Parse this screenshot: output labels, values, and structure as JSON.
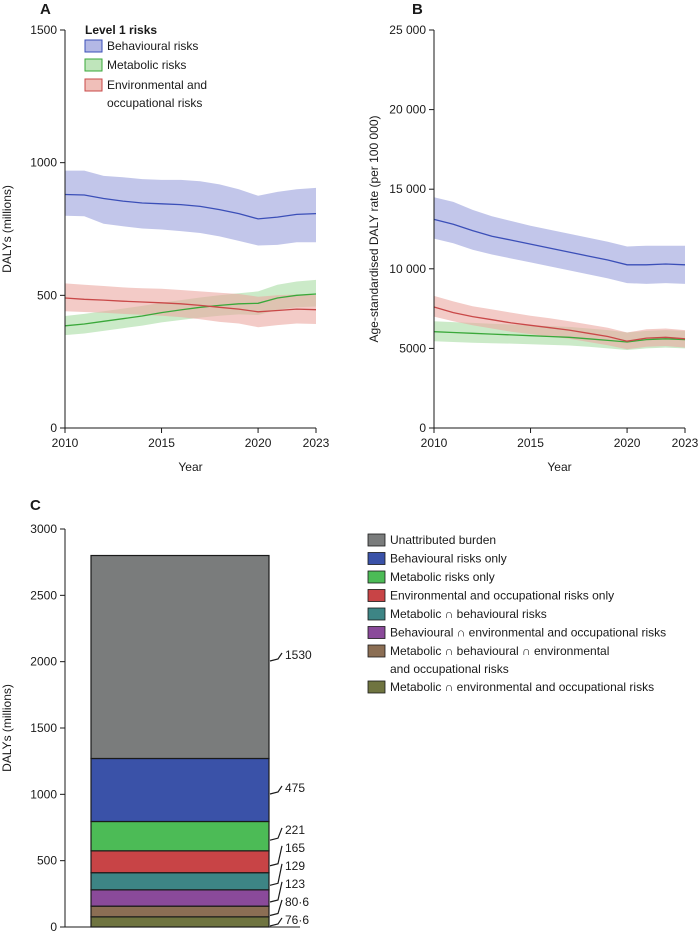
{
  "colors": {
    "behavioural_line": "#3b4fb8",
    "behavioural_band": "#9aa0dc",
    "metabolic_line": "#3aa83a",
    "metabolic_band": "#a9dca4",
    "environmental_line": "#c94848",
    "environmental_band": "#eba9a2",
    "overlap_line": "#7d6b40",
    "axis": "#1a1a1a",
    "bar_outline": "#1a1a1a"
  },
  "chart_data": [
    {
      "panel": "A",
      "type": "area",
      "title": "",
      "xlabel": "Year",
      "ylabel": "DALYs (millions)",
      "xlim": [
        2010,
        2023
      ],
      "ylim": [
        0,
        1500
      ],
      "xticks": [
        2010,
        2015,
        2020,
        2023
      ],
      "yticks": [
        0,
        500,
        1000,
        1500
      ],
      "grid": false,
      "legend_title": "Level 1 risks",
      "legend_position": "top-left",
      "x": [
        2010,
        2011,
        2012,
        2013,
        2014,
        2015,
        2016,
        2017,
        2018,
        2019,
        2020,
        2021,
        2022,
        2023
      ],
      "series": [
        {
          "name": "Behavioural risks",
          "values": [
            880,
            878,
            865,
            855,
            848,
            845,
            842,
            835,
            823,
            808,
            788,
            795,
            805,
            808
          ],
          "lower": [
            800,
            798,
            770,
            760,
            752,
            748,
            742,
            735,
            722,
            705,
            688,
            690,
            700,
            700
          ],
          "upper": [
            970,
            970,
            950,
            945,
            938,
            935,
            935,
            930,
            918,
            900,
            875,
            890,
            900,
            905
          ],
          "line_color": "#3b4fb8",
          "band_color": "#9aa0dc"
        },
        {
          "name": "Metabolic risks",
          "values": [
            385,
            392,
            402,
            412,
            422,
            435,
            445,
            455,
            462,
            468,
            470,
            490,
            500,
            505
          ],
          "lower": [
            350,
            356,
            366,
            376,
            386,
            398,
            407,
            416,
            423,
            428,
            426,
            445,
            455,
            458
          ],
          "upper": [
            422,
            430,
            440,
            450,
            460,
            472,
            482,
            492,
            500,
            508,
            515,
            540,
            552,
            558
          ],
          "line_color": "#3aa83a",
          "band_color": "#a9dca4"
        },
        {
          "name": "Environmental and occupational risks",
          "values": [
            490,
            485,
            482,
            478,
            475,
            472,
            468,
            462,
            455,
            448,
            438,
            443,
            448,
            446
          ],
          "lower": [
            440,
            437,
            434,
            430,
            427,
            423,
            418,
            410,
            400,
            394,
            380,
            388,
            394,
            392
          ],
          "upper": [
            545,
            540,
            535,
            530,
            527,
            525,
            520,
            515,
            510,
            505,
            495,
            500,
            503,
            501
          ],
          "line_color": "#c94848",
          "band_color": "#eba9a2"
        }
      ]
    },
    {
      "panel": "B",
      "type": "area",
      "title": "",
      "xlabel": "Year",
      "ylabel": "Age-standardised DALY rate (per 100 000)",
      "xlim": [
        2010,
        2023
      ],
      "ylim": [
        0,
        25000
      ],
      "xticks": [
        2010,
        2015,
        2020,
        2023
      ],
      "yticks": [
        0,
        5000,
        10000,
        15000,
        20000,
        25000
      ],
      "ytick_labels": [
        "0",
        "5000",
        "10 000",
        "15 000",
        "20 000",
        "25 000"
      ],
      "grid": false,
      "x": [
        2010,
        2011,
        2012,
        2013,
        2014,
        2015,
        2016,
        2017,
        2018,
        2019,
        2020,
        2021,
        2022,
        2023
      ],
      "series": [
        {
          "name": "Behavioural risks",
          "values": [
            13100,
            12800,
            12400,
            12050,
            11800,
            11550,
            11300,
            11050,
            10800,
            10550,
            10250,
            10250,
            10300,
            10250
          ],
          "lower": [
            11900,
            11600,
            11200,
            10900,
            10650,
            10400,
            10150,
            9900,
            9650,
            9400,
            9100,
            9050,
            9100,
            9050
          ],
          "upper": [
            14500,
            14200,
            13700,
            13300,
            13000,
            12700,
            12450,
            12200,
            11950,
            11700,
            11400,
            11450,
            11450,
            11450
          ],
          "line_color": "#3b4fb8",
          "band_color": "#9aa0dc"
        },
        {
          "name": "Metabolic risks",
          "values": [
            6050,
            6000,
            5950,
            5900,
            5850,
            5800,
            5750,
            5700,
            5600,
            5500,
            5400,
            5550,
            5600,
            5550
          ],
          "lower": [
            5450,
            5400,
            5350,
            5320,
            5300,
            5260,
            5220,
            5180,
            5100,
            5000,
            4900,
            5000,
            5050,
            5000
          ],
          "upper": [
            6700,
            6650,
            6600,
            6550,
            6500,
            6450,
            6400,
            6350,
            6250,
            6150,
            6000,
            6100,
            6150,
            6100
          ],
          "line_color": "#3aa83a",
          "band_color": "#a9dca4"
        },
        {
          "name": "Environmental and occupational risks",
          "values": [
            7600,
            7250,
            7000,
            6800,
            6600,
            6450,
            6300,
            6150,
            5950,
            5750,
            5450,
            5650,
            5700,
            5600
          ],
          "lower": [
            7000,
            6700,
            6450,
            6250,
            6050,
            5900,
            5750,
            5600,
            5400,
            5200,
            4950,
            5100,
            5150,
            5050
          ],
          "upper": [
            8300,
            7950,
            7650,
            7450,
            7250,
            7050,
            6900,
            6700,
            6500,
            6300,
            6000,
            6200,
            6250,
            6150
          ],
          "line_color": "#c94848",
          "band_color": "#eba9a2"
        }
      ]
    },
    {
      "panel": "C",
      "type": "bar",
      "stacked": true,
      "title": "",
      "xlabel": "",
      "ylabel": "DALYs (millions)",
      "ylim": [
        0,
        3000
      ],
      "yticks": [
        0,
        500,
        1000,
        1500,
        2000,
        2500,
        3000
      ],
      "grid": false,
      "legend_position": "right",
      "series": [
        {
          "name": "Metabolic ∩ environmental and occupational risks",
          "legend_label": "Metabolic ∩ environmental and occupational risks",
          "value": 76.6,
          "label": "76·6",
          "color": "#6f7440"
        },
        {
          "name": "Metabolic ∩ behavioural ∩ environmental and occupational risks",
          "legend_label": "Metabolic ∩ behavioural ∩ environmental",
          "legend_label_2": "and occupational risks",
          "value": 80.6,
          "label": "80·6",
          "color": "#8b6e54"
        },
        {
          "name": "Behavioural ∩ environmental and occupational risks",
          "legend_label": "Behavioural ∩ environmental and occupational risks",
          "value": 123,
          "label": "123",
          "color": "#8a4a9a"
        },
        {
          "name": "Metabolic ∩ behavioural risks",
          "legend_label": "Metabolic ∩ behavioural risks",
          "value": 129,
          "label": "129",
          "color": "#3d8585"
        },
        {
          "name": "Environmental and occupational risks only",
          "legend_label": "Environmental and occupational risks only",
          "value": 165,
          "label": "165",
          "color": "#c84446"
        },
        {
          "name": "Metabolic risks only",
          "legend_label": "Metabolic risks only",
          "value": 221,
          "label": "221",
          "color": "#4cbb56"
        },
        {
          "name": "Behavioural risks only",
          "legend_label": "Behavioural risks only",
          "value": 475,
          "label": "475",
          "color": "#3a52a8"
        },
        {
          "name": "Unattributed burden",
          "legend_label": "Unattributed burden",
          "value": 1530,
          "label": "1530",
          "color": "#7a7c7c"
        }
      ],
      "legend_order": [
        "Unattributed burden",
        "Behavioural risks only",
        "Metabolic risks only",
        "Environmental and occupational risks only",
        "Metabolic ∩ behavioural risks",
        "Behavioural ∩ environmental and occupational risks",
        "Metabolic ∩ behavioural ∩ environmental and occupational risks",
        "Metabolic ∩ environmental and occupational risks"
      ]
    }
  ]
}
